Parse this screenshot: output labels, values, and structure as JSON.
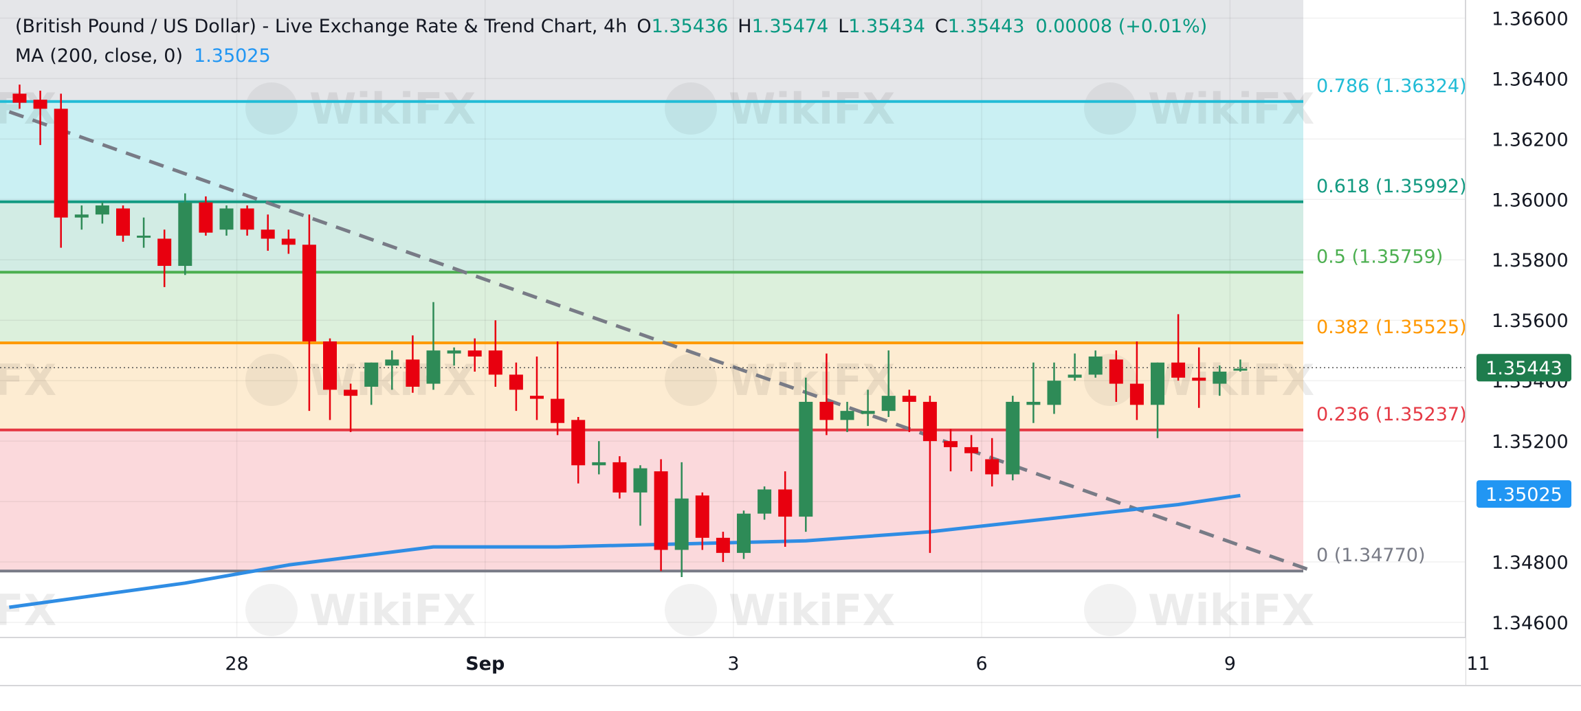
{
  "header": {
    "title": "(British Pound / US Dollar) - Live Exchange Rate & Trend Chart, 4h",
    "ohlc": [
      {
        "key": "O",
        "value": "1.35436"
      },
      {
        "key": "H",
        "value": "1.35474"
      },
      {
        "key": "L",
        "value": "1.35434"
      },
      {
        "key": "C",
        "value": "1.35443"
      }
    ],
    "change": "0.00008 (+0.01%)",
    "indicator_label": "MA (200, close, 0)",
    "indicator_value": "1.35025"
  },
  "watermark": "WikiFX",
  "colors": {
    "up": "#2e8b57",
    "down": "#e8000f",
    "ma": "#2f8de4",
    "trendline": "#787b86",
    "fib_0786": "#21bcd6",
    "fib_0618": "#129a81",
    "fib_05": "#4caf50",
    "fib_0382": "#ff9800",
    "fib_0236": "#e53944",
    "fib_0": "#787b86",
    "price_badge": "#1e7c4d",
    "ma_badge": "#2196f3"
  },
  "chart_data": {
    "type": "candlestick",
    "timeframe": "4h",
    "ylim": [
      1.3455,
      1.3666
    ],
    "y_ticks": [
      "1.36600",
      "1.36400",
      "1.36200",
      "1.36000",
      "1.35800",
      "1.35600",
      "1.35400",
      "1.35200",
      "1.34800",
      "1.34600"
    ],
    "x_ticks": [
      {
        "label": "28",
        "bar": 10.5,
        "bold": false
      },
      {
        "label": "Sep",
        "bar": 22.5,
        "bold": true
      },
      {
        "label": "3",
        "bar": 34.5,
        "bold": false
      },
      {
        "label": "6",
        "bar": 46.5,
        "bold": false
      },
      {
        "label": "9",
        "bar": 58.5,
        "bold": false
      },
      {
        "label": "11",
        "bar": 70.5,
        "bold": false
      }
    ],
    "candles": [
      {
        "o": 1.3635,
        "h": 1.3638,
        "l": 1.363,
        "c": 1.3632
      },
      {
        "o": 1.3633,
        "h": 1.3636,
        "l": 1.3618,
        "c": 1.363
      },
      {
        "o": 1.363,
        "h": 1.3635,
        "l": 1.3584,
        "c": 1.3594
      },
      {
        "o": 1.3594,
        "h": 1.3598,
        "l": 1.359,
        "c": 1.3595
      },
      {
        "o": 1.3595,
        "h": 1.3599,
        "l": 1.3592,
        "c": 1.3598
      },
      {
        "o": 1.3597,
        "h": 1.3598,
        "l": 1.3586,
        "c": 1.3588
      },
      {
        "o": 1.3588,
        "h": 1.3594,
        "l": 1.3584,
        "c": 1.3588
      },
      {
        "o": 1.3587,
        "h": 1.359,
        "l": 1.3571,
        "c": 1.3578
      },
      {
        "o": 1.3578,
        "h": 1.3602,
        "l": 1.3575,
        "c": 1.3599
      },
      {
        "o": 1.3599,
        "h": 1.3601,
        "l": 1.3588,
        "c": 1.3589
      },
      {
        "o": 1.359,
        "h": 1.3598,
        "l": 1.3588,
        "c": 1.3597
      },
      {
        "o": 1.3597,
        "h": 1.3598,
        "l": 1.3588,
        "c": 1.359
      },
      {
        "o": 1.359,
        "h": 1.3595,
        "l": 1.3583,
        "c": 1.3587
      },
      {
        "o": 1.3587,
        "h": 1.359,
        "l": 1.3582,
        "c": 1.3585
      },
      {
        "o": 1.3585,
        "h": 1.3595,
        "l": 1.353,
        "c": 1.3553
      },
      {
        "o": 1.3553,
        "h": 1.3554,
        "l": 1.3527,
        "c": 1.3537
      },
      {
        "o": 1.3537,
        "h": 1.3539,
        "l": 1.3523,
        "c": 1.3535
      },
      {
        "o": 1.3538,
        "h": 1.3546,
        "l": 1.3532,
        "c": 1.3546
      },
      {
        "o": 1.3545,
        "h": 1.355,
        "l": 1.3537,
        "c": 1.3547
      },
      {
        "o": 1.3547,
        "h": 1.3555,
        "l": 1.3536,
        "c": 1.3538
      },
      {
        "o": 1.3539,
        "h": 1.3566,
        "l": 1.3537,
        "c": 1.355
      },
      {
        "o": 1.3549,
        "h": 1.3551,
        "l": 1.3545,
        "c": 1.355
      },
      {
        "o": 1.355,
        "h": 1.3554,
        "l": 1.3543,
        "c": 1.3548
      },
      {
        "o": 1.355,
        "h": 1.356,
        "l": 1.3538,
        "c": 1.3542
      },
      {
        "o": 1.3542,
        "h": 1.3546,
        "l": 1.353,
        "c": 1.3537
      },
      {
        "o": 1.3535,
        "h": 1.3548,
        "l": 1.3527,
        "c": 1.3534
      },
      {
        "o": 1.3534,
        "h": 1.3553,
        "l": 1.3522,
        "c": 1.3526
      },
      {
        "o": 1.3527,
        "h": 1.3528,
        "l": 1.3506,
        "c": 1.3512
      },
      {
        "o": 1.3512,
        "h": 1.352,
        "l": 1.3509,
        "c": 1.3513
      },
      {
        "o": 1.3513,
        "h": 1.3515,
        "l": 1.3501,
        "c": 1.3503
      },
      {
        "o": 1.3503,
        "h": 1.3512,
        "l": 1.3492,
        "c": 1.3511
      },
      {
        "o": 1.351,
        "h": 1.3514,
        "l": 1.3477,
        "c": 1.3484
      },
      {
        "o": 1.3484,
        "h": 1.3513,
        "l": 1.3475,
        "c": 1.3501
      },
      {
        "o": 1.3502,
        "h": 1.3503,
        "l": 1.3484,
        "c": 1.3488
      },
      {
        "o": 1.3488,
        "h": 1.349,
        "l": 1.348,
        "c": 1.3483
      },
      {
        "o": 1.3483,
        "h": 1.3497,
        "l": 1.3481,
        "c": 1.3496
      },
      {
        "o": 1.3496,
        "h": 1.3505,
        "l": 1.3494,
        "c": 1.3504
      },
      {
        "o": 1.3504,
        "h": 1.351,
        "l": 1.3485,
        "c": 1.3495
      },
      {
        "o": 1.3495,
        "h": 1.3541,
        "l": 1.349,
        "c": 1.3533
      },
      {
        "o": 1.3533,
        "h": 1.3549,
        "l": 1.3522,
        "c": 1.3527
      },
      {
        "o": 1.3527,
        "h": 1.3533,
        "l": 1.3523,
        "c": 1.353
      },
      {
        "o": 1.3529,
        "h": 1.3537,
        "l": 1.3525,
        "c": 1.353
      },
      {
        "o": 1.353,
        "h": 1.355,
        "l": 1.3528,
        "c": 1.3535
      },
      {
        "o": 1.3535,
        "h": 1.3537,
        "l": 1.3523,
        "c": 1.3533
      },
      {
        "o": 1.3533,
        "h": 1.3535,
        "l": 1.3483,
        "c": 1.352
      },
      {
        "o": 1.352,
        "h": 1.3524,
        "l": 1.351,
        "c": 1.3518
      },
      {
        "o": 1.3518,
        "h": 1.3522,
        "l": 1.351,
        "c": 1.3516
      },
      {
        "o": 1.3514,
        "h": 1.3521,
        "l": 1.3505,
        "c": 1.3509
      },
      {
        "o": 1.3509,
        "h": 1.3535,
        "l": 1.3507,
        "c": 1.3533
      },
      {
        "o": 1.3532,
        "h": 1.3546,
        "l": 1.3526,
        "c": 1.3533
      },
      {
        "o": 1.3532,
        "h": 1.3546,
        "l": 1.3529,
        "c": 1.354
      },
      {
        "o": 1.3541,
        "h": 1.3549,
        "l": 1.354,
        "c": 1.3542
      },
      {
        "o": 1.3542,
        "h": 1.355,
        "l": 1.3541,
        "c": 1.3548
      },
      {
        "o": 1.3547,
        "h": 1.355,
        "l": 1.3533,
        "c": 1.3539
      },
      {
        "o": 1.3539,
        "h": 1.3553,
        "l": 1.3527,
        "c": 1.3532
      },
      {
        "o": 1.3532,
        "h": 1.3546,
        "l": 1.3521,
        "c": 1.3546
      },
      {
        "o": 1.3546,
        "h": 1.3562,
        "l": 1.354,
        "c": 1.3541
      },
      {
        "o": 1.3541,
        "h": 1.3551,
        "l": 1.3531,
        "c": 1.354
      },
      {
        "o": 1.3539,
        "h": 1.3545,
        "l": 1.3535,
        "c": 1.3543
      },
      {
        "o": 1.3544,
        "h": 1.3547,
        "l": 1.3543,
        "c": 1.3544
      }
    ],
    "ma_200": [
      {
        "bar": -0.5,
        "v": 1.3465
      },
      {
        "bar": 8,
        "v": 1.3473
      },
      {
        "bar": 13,
        "v": 1.3479
      },
      {
        "bar": 20,
        "v": 1.3485
      },
      {
        "bar": 26,
        "v": 1.3485
      },
      {
        "bar": 32,
        "v": 1.3486
      },
      {
        "bar": 38,
        "v": 1.3487
      },
      {
        "bar": 44,
        "v": 1.349
      },
      {
        "bar": 48,
        "v": 1.3493
      },
      {
        "bar": 52,
        "v": 1.3496
      },
      {
        "bar": 56,
        "v": 1.3499
      },
      {
        "bar": 59,
        "v": 1.3502
      }
    ],
    "trendline": {
      "from": {
        "bar": -0.5,
        "v": 1.3629
      },
      "to": {
        "bar": 62.5,
        "v": 1.3477
      }
    },
    "fib_levels": [
      {
        "ratio": "0.786",
        "price": 1.36324,
        "label": "0.786 (1.36324)",
        "color_key": "fib_0786",
        "fill": "#caf0f3"
      },
      {
        "ratio": "0.618",
        "price": 1.35992,
        "label": "0.618 (1.35992)",
        "color_key": "fib_0618",
        "fill": "#d2ece4"
      },
      {
        "ratio": "0.5",
        "price": 1.35759,
        "label": "0.5 (1.35759)",
        "color_key": "fib_05",
        "fill": "#dcf0dc"
      },
      {
        "ratio": "0.382",
        "price": 1.35525,
        "label": "0.382 (1.35525)",
        "color_key": "fib_0382",
        "fill": "#fdecd2"
      },
      {
        "ratio": "0.236",
        "price": 1.35237,
        "label": "0.236 (1.35237)",
        "color_key": "fib_0236",
        "fill": "#fbd9dc"
      },
      {
        "ratio": "0",
        "price": 1.3477,
        "label": "0 (1.34770)",
        "color_key": "fib_0",
        "fill": null
      }
    ],
    "fib_top_fill": "#e5e6e9",
    "last_price": 1.35443,
    "last_price_label": "1.35443",
    "ma_last": 1.35025,
    "ma_last_label": "1.35025"
  }
}
